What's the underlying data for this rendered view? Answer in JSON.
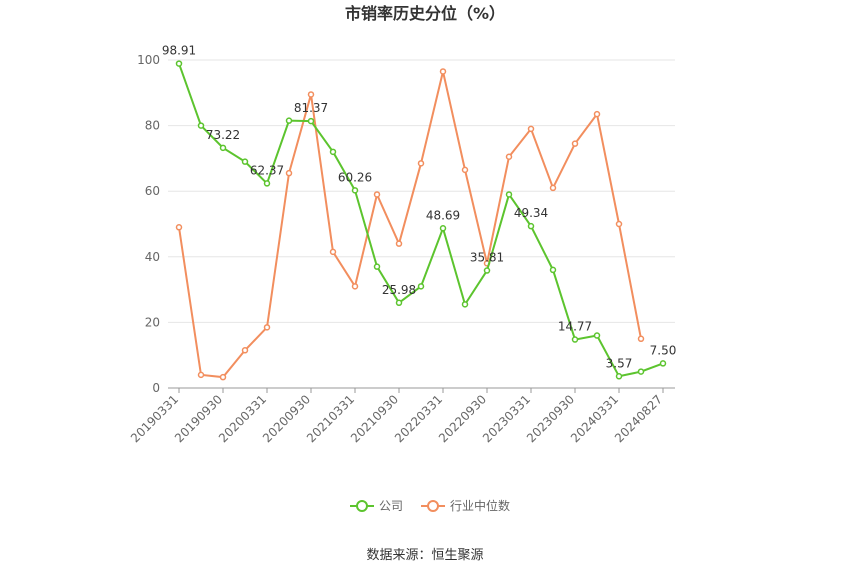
{
  "chart_data": {
    "type": "line",
    "title": "市销率历史分位（%）",
    "categories": [
      "20190331",
      null,
      "20190930",
      null,
      "20200331",
      null,
      "20200930",
      null,
      "20210331",
      null,
      "20210930",
      null,
      "20220331",
      null,
      "20220930",
      null,
      "20230331",
      null,
      "20230930",
      null,
      "20240331",
      null,
      "20240827"
    ],
    "series": [
      {
        "name": "公司",
        "color": "#5cc42e",
        "values": [
          98.91,
          80,
          73.22,
          69,
          62.37,
          81.5,
          81.37,
          72,
          60.26,
          37,
          25.98,
          31,
          48.69,
          25.5,
          35.81,
          59,
          49.34,
          36,
          14.77,
          16,
          3.57,
          5,
          7.5
        ],
        "value_labels": [
          "98.91",
          null,
          "73.22",
          null,
          "62.37",
          null,
          "81.37",
          null,
          "60.26",
          null,
          "25.98",
          null,
          "48.69",
          null,
          "35.81",
          null,
          "49.34",
          null,
          "14.77",
          null,
          "3.57",
          null,
          "7.50"
        ]
      },
      {
        "name": "行业中位数",
        "color": "#f28e5e",
        "values": [
          49,
          4,
          3.3,
          11.5,
          18.5,
          65.5,
          89.5,
          41.5,
          31,
          59,
          44,
          68.5,
          96.5,
          66.5,
          38,
          70.5,
          79,
          61,
          74.5,
          83.5,
          50,
          15,
          null
        ]
      }
    ],
    "ylim": [
      0,
      100
    ],
    "yticks": [
      0,
      20,
      40,
      60,
      80,
      100
    ],
    "grid": true,
    "legend": "bottom",
    "source": "数据来源：恒生聚源"
  }
}
